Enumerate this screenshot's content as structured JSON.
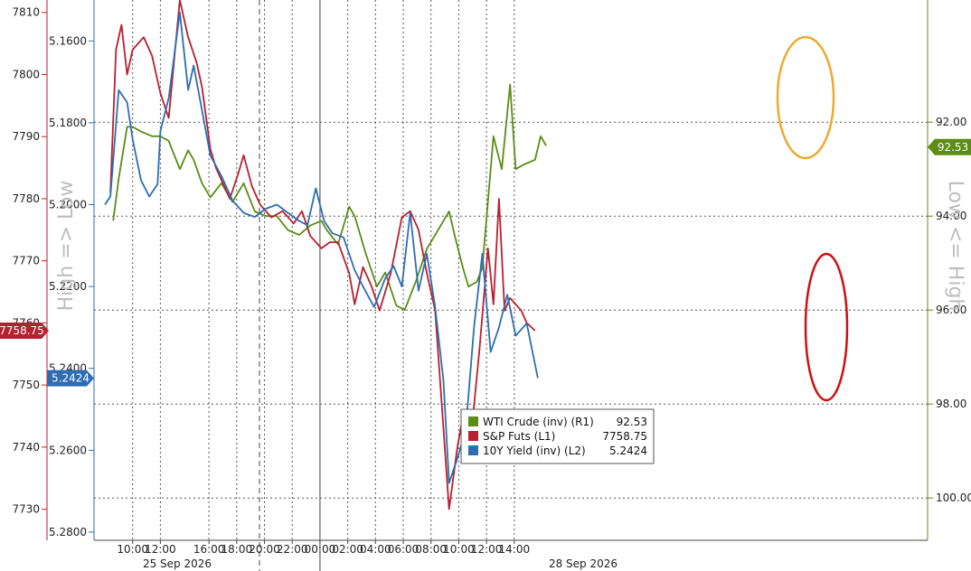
{
  "chart_data": {
    "type": "line",
    "side_label_left": "High => Low",
    "side_label_right": "Low <= High",
    "x_tick_labels": [
      "10:00",
      "12:00",
      "16:00",
      "18:00",
      "20:00",
      "22:00",
      "00:00",
      "02:00",
      "04:00",
      "06:00",
      "08:00",
      "10:00",
      "12:00",
      "14:00"
    ],
    "x_date_labels": [
      "25 Sep 2026",
      "28 Sep 2026"
    ],
    "axes": {
      "L1": {
        "name": "S&P Futs",
        "range": [
          7725,
          7812
        ],
        "ticks": [
          7810,
          7800,
          7790,
          7780,
          7770,
          7760,
          7750,
          7740,
          7730
        ],
        "tick_labels": [
          "7810",
          "7800",
          "7790",
          "7780",
          "7770",
          "7760",
          "7750",
          "7740",
          "7730"
        ],
        "badge": "7758.75"
      },
      "L2": {
        "name": "10Y Yield (inv)",
        "range": [
          5.15,
          5.282
        ],
        "inverted": true,
        "ticks": [
          5.16,
          5.18,
          5.2,
          5.22,
          5.24,
          5.26,
          5.28
        ],
        "tick_labels": [
          "5.1600",
          "5.1800",
          "5.2000",
          "5.2200",
          "5.2400",
          "5.2600",
          "5.2800"
        ],
        "badge": "5.2424"
      },
      "R1": {
        "name": "WTI Crude (inv)",
        "range": [
          89.4,
          100.9
        ],
        "inverted": true,
        "ticks": [
          92,
          94,
          96,
          98,
          100
        ],
        "tick_labels": [
          "92.00",
          "94.00",
          "96.00",
          "98.00",
          "100.00"
        ],
        "badge": "92.53"
      }
    },
    "series": [
      {
        "name": "WTI Crude (inv) (R1)",
        "key": "wti",
        "axis": "R1",
        "color": "#5b8c15",
        "last": "92.53",
        "points": [
          [
            0.3,
            94.1
          ],
          [
            0.5,
            93.2
          ],
          [
            0.8,
            92.1
          ],
          [
            1.0,
            92.1
          ],
          [
            1.3,
            92.2
          ],
          [
            1.7,
            92.3
          ],
          [
            2.0,
            92.3
          ],
          [
            2.3,
            92.4
          ],
          [
            2.7,
            93.0
          ],
          [
            3.0,
            92.6
          ],
          [
            3.2,
            92.8
          ],
          [
            3.5,
            93.3
          ],
          [
            3.8,
            93.6
          ],
          [
            4.2,
            93.3
          ],
          [
            4.6,
            93.7
          ],
          [
            5.0,
            93.3
          ],
          [
            5.4,
            93.9
          ],
          [
            5.8,
            94.0
          ],
          [
            6.2,
            94.0
          ],
          [
            6.6,
            94.3
          ],
          [
            7.0,
            94.4
          ],
          [
            7.4,
            94.2
          ],
          [
            7.8,
            94.1
          ],
          [
            8.0,
            94.3
          ],
          [
            8.4,
            94.6
          ],
          [
            8.8,
            93.8
          ],
          [
            9.0,
            94.0
          ],
          [
            9.4,
            94.8
          ],
          [
            9.8,
            95.5
          ],
          [
            10.1,
            95.2
          ],
          [
            10.5,
            95.9
          ],
          [
            10.8,
            96.0
          ],
          [
            11.2,
            95.4
          ],
          [
            11.6,
            94.7
          ],
          [
            12.0,
            94.3
          ],
          [
            12.4,
            93.9
          ],
          [
            12.6,
            94.4
          ],
          [
            12.9,
            95.1
          ],
          [
            13.1,
            95.5
          ],
          [
            13.4,
            95.4
          ],
          [
            13.6,
            95.1
          ],
          [
            14.0,
            92.3
          ],
          [
            14.3,
            93.0
          ],
          [
            14.6,
            91.2
          ],
          [
            14.8,
            93.0
          ],
          [
            15.1,
            92.9
          ],
          [
            15.5,
            92.8
          ],
          [
            15.7,
            92.3
          ],
          [
            15.9,
            92.5
          ]
        ]
      },
      {
        "name": "S&P Futs (L1)",
        "key": "spx",
        "axis": "L1",
        "color": "#b8202f",
        "last": "7758.75",
        "points": [
          [
            0.2,
            7781
          ],
          [
            0.4,
            7804
          ],
          [
            0.6,
            7808
          ],
          [
            0.8,
            7800
          ],
          [
            1.0,
            7804
          ],
          [
            1.4,
            7806
          ],
          [
            1.7,
            7803
          ],
          [
            2.0,
            7797
          ],
          [
            2.3,
            7793
          ],
          [
            2.7,
            7812
          ],
          [
            3.0,
            7806
          ],
          [
            3.3,
            7802
          ],
          [
            3.5,
            7798
          ],
          [
            3.8,
            7788
          ],
          [
            4.0,
            7785
          ],
          [
            4.5,
            7780
          ],
          [
            4.8,
            7784
          ],
          [
            5.0,
            7787
          ],
          [
            5.3,
            7782
          ],
          [
            5.6,
            7779
          ],
          [
            6.0,
            7777
          ],
          [
            6.4,
            7778
          ],
          [
            6.8,
            7776
          ],
          [
            7.1,
            7778
          ],
          [
            7.4,
            7774
          ],
          [
            7.8,
            7772
          ],
          [
            8.1,
            7773
          ],
          [
            8.4,
            7773
          ],
          [
            8.8,
            7768
          ],
          [
            9.0,
            7763
          ],
          [
            9.3,
            7769
          ],
          [
            9.6,
            7766
          ],
          [
            9.9,
            7762
          ],
          [
            10.3,
            7768
          ],
          [
            10.7,
            7777
          ],
          [
            11.0,
            7778
          ],
          [
            11.3,
            7775
          ],
          [
            11.6,
            7768
          ],
          [
            11.9,
            7762
          ],
          [
            12.2,
            7743
          ],
          [
            12.4,
            7730
          ],
          [
            12.7,
            7740
          ],
          [
            12.9,
            7745
          ],
          [
            13.2,
            7742
          ],
          [
            13.5,
            7756
          ],
          [
            13.8,
            7772
          ],
          [
            14.0,
            7763
          ],
          [
            14.2,
            7780
          ],
          [
            14.4,
            7762
          ],
          [
            14.6,
            7764
          ],
          [
            15.0,
            7762
          ],
          [
            15.2,
            7760
          ],
          [
            15.5,
            7758.75
          ]
        ]
      },
      {
        "name": "10Y Yield (inv) (L2)",
        "key": "yld",
        "axis": "L2",
        "color": "#2e6db3",
        "last": "5.2424",
        "points": [
          [
            0.0,
            5.2
          ],
          [
            0.2,
            5.198
          ],
          [
            0.5,
            5.172
          ],
          [
            0.8,
            5.175
          ],
          [
            1.0,
            5.184
          ],
          [
            1.3,
            5.194
          ],
          [
            1.6,
            5.198
          ],
          [
            1.9,
            5.195
          ],
          [
            2.0,
            5.182
          ],
          [
            2.3,
            5.174
          ],
          [
            2.7,
            5.153
          ],
          [
            3.0,
            5.172
          ],
          [
            3.2,
            5.166
          ],
          [
            3.8,
            5.188
          ],
          [
            4.2,
            5.193
          ],
          [
            4.6,
            5.199
          ],
          [
            5.0,
            5.202
          ],
          [
            5.4,
            5.203
          ],
          [
            5.8,
            5.201
          ],
          [
            6.2,
            5.2
          ],
          [
            6.6,
            5.202
          ],
          [
            7.0,
            5.204
          ],
          [
            7.3,
            5.205
          ],
          [
            7.6,
            5.196
          ],
          [
            7.9,
            5.204
          ],
          [
            8.2,
            5.207
          ],
          [
            8.6,
            5.208
          ],
          [
            9.0,
            5.216
          ],
          [
            9.3,
            5.22
          ],
          [
            9.7,
            5.225
          ],
          [
            10.1,
            5.218
          ],
          [
            10.4,
            5.215
          ],
          [
            10.7,
            5.22
          ],
          [
            11.0,
            5.202
          ],
          [
            11.3,
            5.221
          ],
          [
            11.6,
            5.212
          ],
          [
            11.9,
            5.225
          ],
          [
            12.2,
            5.243
          ],
          [
            12.4,
            5.268
          ],
          [
            12.7,
            5.262
          ],
          [
            13.0,
            5.255
          ],
          [
            13.3,
            5.23
          ],
          [
            13.6,
            5.212
          ],
          [
            13.9,
            5.236
          ],
          [
            14.2,
            5.23
          ],
          [
            14.5,
            5.222
          ],
          [
            14.8,
            5.232
          ],
          [
            15.2,
            5.229
          ],
          [
            15.6,
            5.2424
          ]
        ]
      }
    ],
    "legend": {
      "placement": "bottom-center",
      "entries": [
        {
          "label": "WTI Crude (inv) (R1)",
          "value": "92.53",
          "color": "#5b8c15"
        },
        {
          "label": "S&P Futs (L1)",
          "value": "7758.75",
          "color": "#b8202f"
        },
        {
          "label": "10Y Yield (inv) (L2)",
          "value": "5.2424",
          "color": "#2e6db3"
        }
      ]
    },
    "annotations": [
      {
        "name": "highlight-circle-oil",
        "color": "#f0a830"
      },
      {
        "name": "highlight-circle-equities-yield",
        "color": "#cc1111"
      }
    ],
    "grid": true
  }
}
